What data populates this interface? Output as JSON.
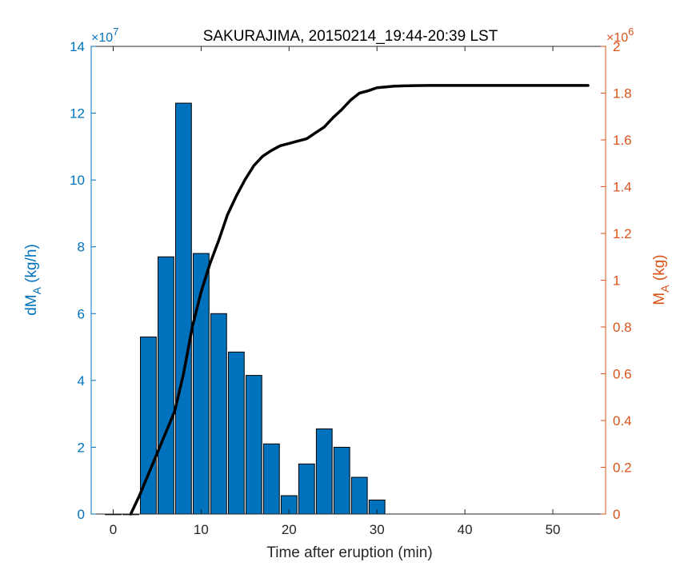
{
  "chart_data": {
    "type": "bar+line",
    "title": "SAKURAJIMA, 20150214_19:44-20:39 LST",
    "xlabel": "Time after eruption (min)",
    "xlim": [
      -2.5,
      56
    ],
    "x_ticks": [
      "0",
      "10",
      "20",
      "30",
      "40",
      "50"
    ],
    "left_axis": {
      "label": "dM",
      "label_sub": "A",
      "label_units": " (kg/h)",
      "multiplier": "×10",
      "multiplier_exp": "7",
      "ylim": [
        0,
        14
      ],
      "ticks": [
        "0",
        "2",
        "4",
        "6",
        "8",
        "10",
        "12",
        "14"
      ],
      "color": "#0072bd"
    },
    "right_axis": {
      "label": "M",
      "label_sub": "A",
      "label_units": " (kg)",
      "multiplier": "×10",
      "multiplier_exp": "6",
      "ylim": [
        0,
        2
      ],
      "ticks": [
        "0",
        "0.2",
        "0.4",
        "0.6",
        "0.8",
        "1",
        "1.2",
        "1.4",
        "1.6",
        "1.8",
        "2"
      ],
      "color": "#d95319"
    },
    "bars": {
      "name": "dMA",
      "color": "#0072bd",
      "x": [
        0,
        2,
        4,
        6,
        8,
        10,
        12,
        14,
        16,
        18,
        20,
        22,
        24,
        26,
        28,
        30
      ],
      "values": [
        0,
        0,
        5.3,
        7.7,
        12.3,
        7.8,
        6.0,
        4.85,
        4.15,
        2.1,
        0.55,
        1.5,
        2.55,
        2.0,
        1.1,
        0.42
      ]
    },
    "line": {
      "name": "MA",
      "color": "#000000",
      "x": [
        2,
        3,
        4,
        5,
        6,
        7,
        8,
        9,
        10,
        11,
        12,
        13,
        14,
        15,
        16,
        17,
        18,
        19,
        20,
        21,
        22,
        23,
        24,
        25,
        26,
        27,
        28,
        29,
        30,
        32,
        34,
        36,
        38,
        40,
        42,
        44,
        46,
        48,
        50,
        52,
        54
      ],
      "values": [
        0,
        0.08,
        0.17,
        0.26,
        0.35,
        0.44,
        0.6,
        0.8,
        0.95,
        1.07,
        1.17,
        1.28,
        1.36,
        1.43,
        1.49,
        1.53,
        1.555,
        1.575,
        1.585,
        1.595,
        1.605,
        1.63,
        1.655,
        1.695,
        1.73,
        1.77,
        1.8,
        1.81,
        1.823,
        1.83,
        1.832,
        1.833,
        1.833,
        1.833,
        1.833,
        1.833,
        1.833,
        1.833,
        1.833,
        1.833,
        1.833
      ]
    }
  }
}
